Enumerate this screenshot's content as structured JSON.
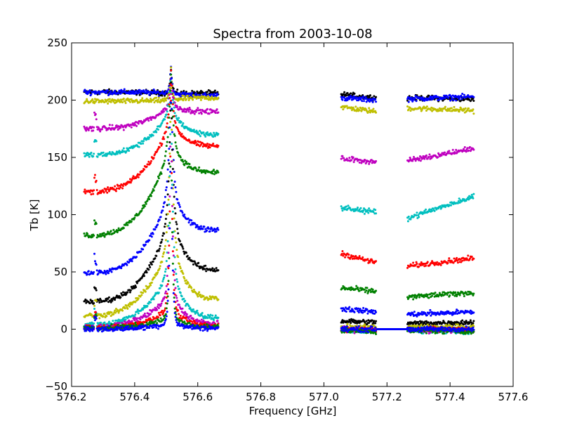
{
  "chart_data": {
    "type": "scatter",
    "title": "Spectra from 2003-10-08",
    "xlabel": "Frequency [GHz]",
    "ylabel": "Tb [K]",
    "xlim": [
      576.2,
      577.6
    ],
    "ylim": [
      -50,
      250
    ],
    "grid": false,
    "legend": "none",
    "x_ticks": [
      "576.2",
      "576.4",
      "576.6",
      "576.8",
      "577.0",
      "577.2",
      "577.4",
      "577.6"
    ],
    "y_ticks": [
      "−50",
      "0",
      "50",
      "100",
      "150",
      "200",
      "250"
    ],
    "x_tick_values": [
      576.2,
      576.4,
      576.6,
      576.8,
      577.0,
      577.2,
      577.4,
      577.6
    ],
    "y_tick_values": [
      -50,
      0,
      50,
      100,
      150,
      200,
      250
    ],
    "line_center": 576.515,
    "line_peak": 232,
    "bands": [
      {
        "name": "band1",
        "x": [
          576.24,
          576.665
        ]
      },
      {
        "name": "band2a",
        "x": [
          577.055,
          577.165
        ]
      },
      {
        "name": "band2b",
        "x": [
          577.265,
          577.475
        ]
      }
    ],
    "series": [
      {
        "color": "#000000",
        "band1": [
          207,
          206,
          206
        ],
        "band2a": [
          205,
          202
        ],
        "band2b": [
          202,
          201
        ]
      },
      {
        "color": "#0000ff",
        "band1": [
          207,
          206,
          204
        ],
        "band2a": [
          202,
          200
        ],
        "band2b": [
          201,
          203
        ]
      },
      {
        "color": "#bfbf00",
        "band1": [
          199,
          200,
          202
        ],
        "band2a": [
          194,
          190
        ],
        "band2b": [
          193,
          191
        ]
      },
      {
        "color": "#bf00bf",
        "band1": [
          175,
          195,
          190
        ],
        "band2a": [
          149,
          146
        ],
        "band2b": [
          147,
          158
        ]
      },
      {
        "color": "#00bfbf",
        "band1": [
          152,
          190,
          170
        ],
        "band2a": [
          106,
          102
        ],
        "band2b": [
          97,
          116
        ]
      },
      {
        "color": "#ff0000",
        "band1": [
          120,
          180,
          160
        ],
        "band2a": [
          66,
          58
        ],
        "band2b": [
          55,
          62
        ]
      },
      {
        "color": "#008000",
        "band1": [
          82,
          160,
          137
        ],
        "band2a": [
          36,
          33
        ],
        "band2b": [
          28,
          32
        ]
      },
      {
        "color": "#0000ff",
        "band1": [
          49,
          120,
          87
        ],
        "band2a": [
          18,
          15
        ],
        "band2b": [
          13,
          15
        ]
      },
      {
        "color": "#000000",
        "band1": [
          24,
          95,
          52
        ],
        "band2a": [
          7,
          6
        ],
        "band2b": [
          5,
          6
        ]
      },
      {
        "color": "#bfbf00",
        "band1": [
          12,
          75,
          27
        ],
        "band2a": [
          2,
          2
        ],
        "band2b": [
          2,
          2
        ]
      },
      {
        "color": "#00bfbf",
        "band1": [
          4,
          50,
          10
        ],
        "band2a": [
          -1,
          -2
        ],
        "band2b": [
          -1,
          -2
        ]
      },
      {
        "color": "#bf00bf",
        "band1": [
          2,
          30,
          5
        ],
        "band2a": [
          0,
          -1
        ],
        "band2b": [
          -1,
          -1
        ]
      },
      {
        "color": "#ff0000",
        "band1": [
          1,
          18,
          3
        ],
        "band2a": [
          0,
          0
        ],
        "band2b": [
          0,
          0
        ]
      },
      {
        "color": "#008000",
        "band1": [
          1,
          10,
          2
        ],
        "band2a": [
          -1,
          -2
        ],
        "band2b": [
          -1,
          -2
        ]
      },
      {
        "color": "#0000ff",
        "band1": [
          0,
          5,
          1
        ],
        "band2a": [
          0,
          0
        ],
        "band2b": [
          0,
          0
        ]
      }
    ],
    "flat_segment": {
      "color": "#0000ff",
      "x": [
        577.165,
        577.265
      ],
      "y": 0
    }
  }
}
